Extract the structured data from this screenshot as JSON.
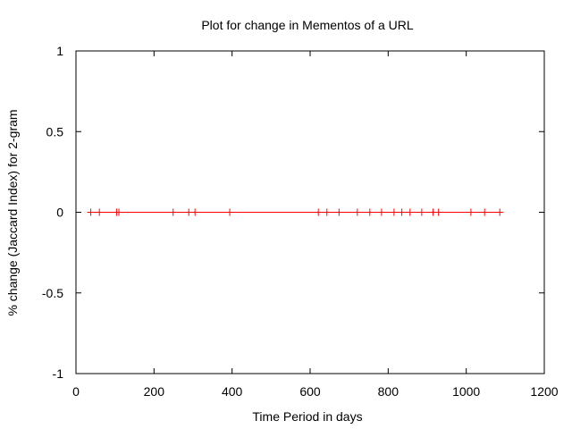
{
  "chart_data": {
    "type": "line",
    "title": "Plot for change in Mementos of a URL",
    "xlabel": "Time Period in days",
    "ylabel": "% change (Jaccard Index) for 2-gram",
    "xlim": [
      0,
      1200
    ],
    "ylim": [
      -1,
      1
    ],
    "xticks": [
      0,
      200,
      400,
      600,
      800,
      1000,
      1200
    ],
    "yticks": [
      -1,
      -0.5,
      0,
      0.5,
      1
    ],
    "xtick_labels": [
      "0",
      "200",
      "400",
      "600",
      "800",
      "1000",
      "1200"
    ],
    "ytick_labels": [
      "-1",
      "-0.5",
      "0",
      "0.5",
      "1"
    ],
    "grid": false,
    "legend": "none",
    "series": [
      {
        "color": "#ff0000",
        "marker": "plus",
        "x": [
          38,
          60,
          104,
          110,
          249,
          289,
          305,
          394,
          621,
          643,
          674,
          721,
          753,
          783,
          815,
          835,
          856,
          886,
          915,
          929,
          1012,
          1047,
          1086
        ],
        "y": [
          0,
          0,
          0,
          0,
          0,
          0,
          0,
          0,
          0,
          0,
          0,
          0,
          0,
          0,
          0,
          0,
          0,
          0,
          0,
          0,
          0,
          0,
          0
        ]
      }
    ]
  }
}
